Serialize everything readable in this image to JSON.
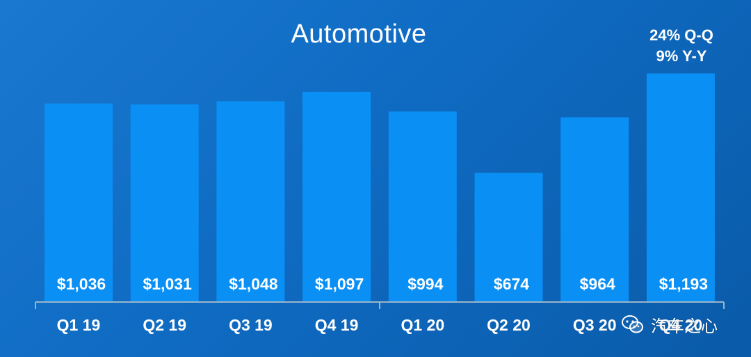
{
  "title": "Automotive",
  "callout": {
    "line1": "24% Q-Q",
    "line2": "9% Y-Y"
  },
  "watermark": {
    "text": "汽车之心",
    "icon": "wechat-icon"
  },
  "colors": {
    "background": "#1570c8",
    "bar": "#0a8ff5",
    "axis": "#9bb4cc",
    "text": "#ffffff"
  },
  "chart_data": {
    "type": "bar",
    "title": "Automotive",
    "xlabel": "",
    "ylabel": "",
    "categories": [
      "Q1 19",
      "Q2 19",
      "Q3 19",
      "Q4 19",
      "Q1 20",
      "Q2 20",
      "Q3 20",
      "Q4 20"
    ],
    "values": [
      1036,
      1031,
      1048,
      1097,
      994,
      674,
      964,
      1193
    ],
    "value_labels": [
      "$1,036",
      "$1,031",
      "$1,048",
      "$1,097",
      "$994",
      "$674",
      "$964",
      "$1,193"
    ],
    "ylim": [
      0,
      1300
    ],
    "grid": false
  }
}
